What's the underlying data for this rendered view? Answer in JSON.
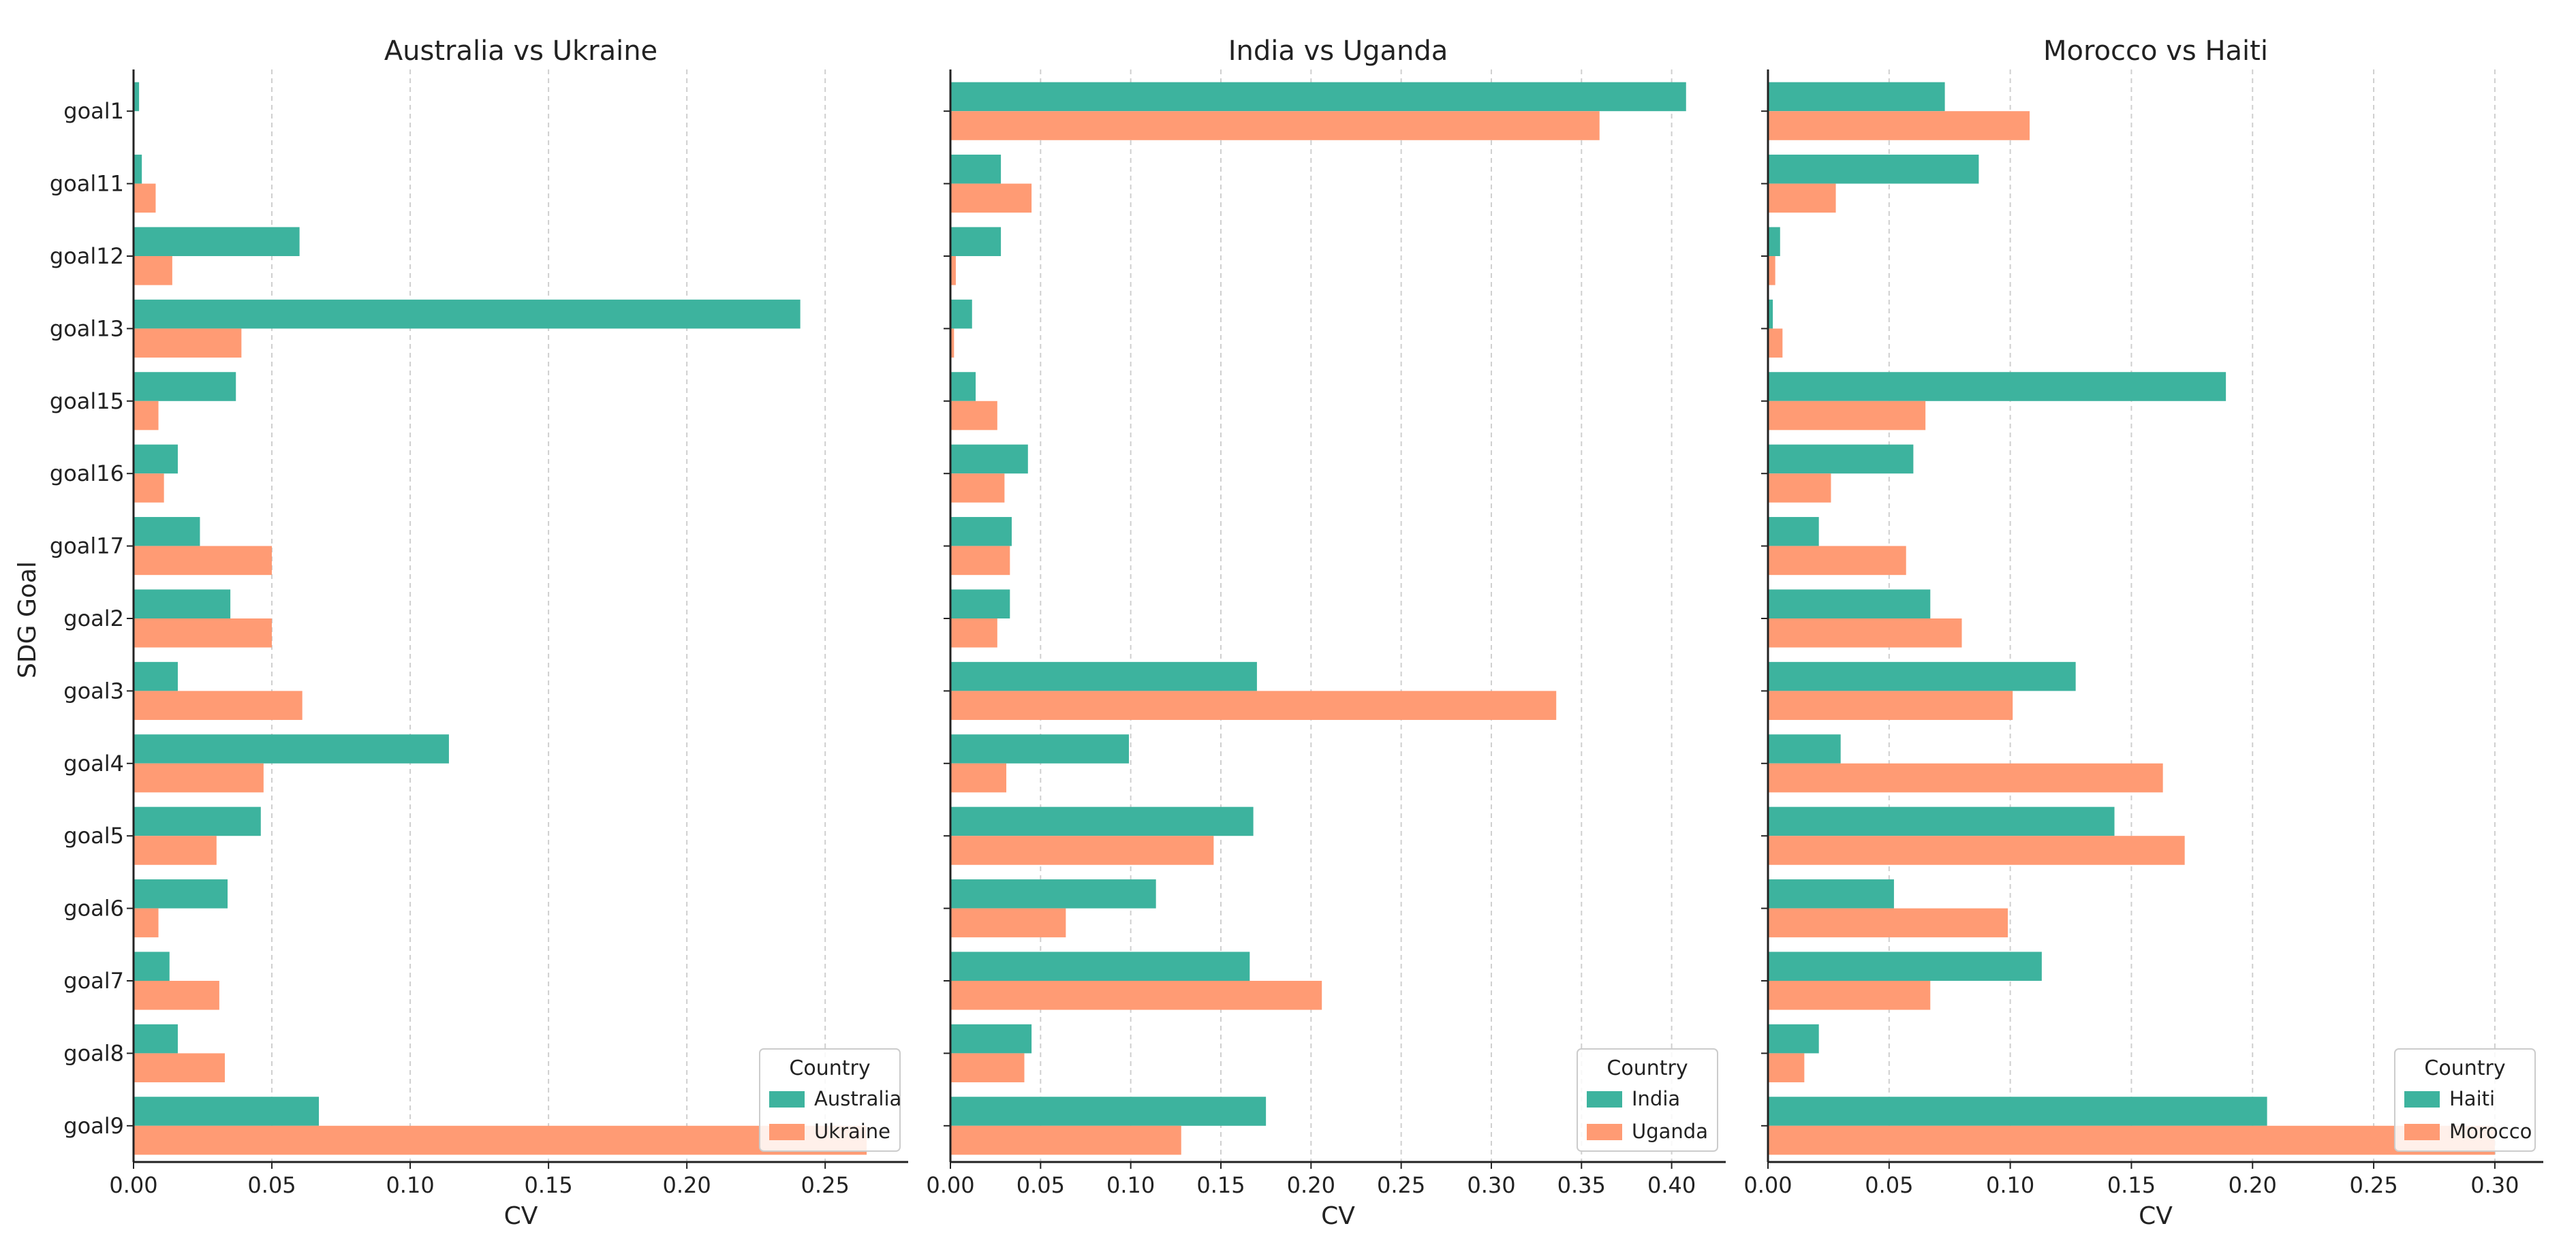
{
  "ylabel": "SDG Goal",
  "colors": {
    "series_a": "#3db39e",
    "series_b": "#ff9b74",
    "grid": "#cfcfcf",
    "axis": "#222222"
  },
  "chart_data": [
    {
      "type": "bar",
      "orientation": "horizontal",
      "title": "Australia vs Ukraine",
      "xlabel": "CV",
      "ylabel": "SDG Goal",
      "xlim": [
        0,
        0.28
      ],
      "xticks": [
        0.0,
        0.05,
        0.1,
        0.15,
        0.2,
        0.25
      ],
      "xtick_labels": [
        "0.00",
        "0.05",
        "0.10",
        "0.15",
        "0.20",
        "0.25"
      ],
      "grid": "vertical dashed",
      "legend_title": "Country",
      "legend_position": "bottom-right",
      "categories": [
        "goal1",
        "goal11",
        "goal12",
        "goal13",
        "goal15",
        "goal16",
        "goal17",
        "goal2",
        "goal3",
        "goal4",
        "goal5",
        "goal6",
        "goal7",
        "goal8",
        "goal9"
      ],
      "series": [
        {
          "name": "Australia",
          "values": [
            0.002,
            0.003,
            0.06,
            0.241,
            0.037,
            0.016,
            0.024,
            0.035,
            0.016,
            0.114,
            0.046,
            0.034,
            0.013,
            0.016,
            0.067
          ]
        },
        {
          "name": "Ukraine",
          "values": [
            0.0,
            0.008,
            0.014,
            0.039,
            0.009,
            0.011,
            0.05,
            0.05,
            0.061,
            0.047,
            0.03,
            0.009,
            0.031,
            0.033,
            0.265
          ]
        }
      ]
    },
    {
      "type": "bar",
      "orientation": "horizontal",
      "title": "India vs Uganda",
      "xlabel": "CV",
      "ylabel": "",
      "xlim": [
        0,
        0.43
      ],
      "xticks": [
        0.0,
        0.05,
        0.1,
        0.15,
        0.2,
        0.25,
        0.3,
        0.35,
        0.4
      ],
      "xtick_labels": [
        "0.00",
        "0.05",
        "0.10",
        "0.15",
        "0.20",
        "0.25",
        "0.30",
        "0.35",
        "0.40"
      ],
      "grid": "vertical dashed",
      "legend_title": "Country",
      "legend_position": "bottom-right",
      "categories": [
        "goal1",
        "goal11",
        "goal12",
        "goal13",
        "goal15",
        "goal16",
        "goal17",
        "goal2",
        "goal3",
        "goal4",
        "goal5",
        "goal6",
        "goal7",
        "goal8",
        "goal9"
      ],
      "series": [
        {
          "name": "India",
          "values": [
            0.408,
            0.028,
            0.028,
            0.012,
            0.014,
            0.043,
            0.034,
            0.033,
            0.17,
            0.099,
            0.168,
            0.114,
            0.166,
            0.045,
            0.175
          ]
        },
        {
          "name": "Uganda",
          "values": [
            0.36,
            0.045,
            0.003,
            0.002,
            0.026,
            0.03,
            0.033,
            0.026,
            0.336,
            0.031,
            0.146,
            0.064,
            0.206,
            0.041,
            0.128
          ]
        }
      ]
    },
    {
      "type": "bar",
      "orientation": "horizontal",
      "title": "Morocco vs Haiti",
      "xlabel": "CV",
      "ylabel": "",
      "xlim": [
        0,
        0.32
      ],
      "xticks": [
        0.0,
        0.05,
        0.1,
        0.15,
        0.2,
        0.25,
        0.3
      ],
      "xtick_labels": [
        "0.00",
        "0.05",
        "0.10",
        "0.15",
        "0.20",
        "0.25",
        "0.30"
      ],
      "grid": "vertical dashed",
      "legend_title": "Country",
      "legend_position": "bottom-right",
      "categories": [
        "goal1",
        "goal11",
        "goal12",
        "goal13",
        "goal15",
        "goal16",
        "goal17",
        "goal2",
        "goal3",
        "goal4",
        "goal5",
        "goal6",
        "goal7",
        "goal8",
        "goal9"
      ],
      "series": [
        {
          "name": "Haiti",
          "values": [
            0.073,
            0.087,
            0.005,
            0.002,
            0.189,
            0.06,
            0.021,
            0.067,
            0.127,
            0.03,
            0.143,
            0.052,
            0.113,
            0.021,
            0.206
          ]
        },
        {
          "name": "Morocco",
          "values": [
            0.108,
            0.028,
            0.003,
            0.006,
            0.065,
            0.026,
            0.057,
            0.08,
            0.101,
            0.163,
            0.172,
            0.099,
            0.067,
            0.015,
            0.3
          ]
        }
      ]
    }
  ]
}
